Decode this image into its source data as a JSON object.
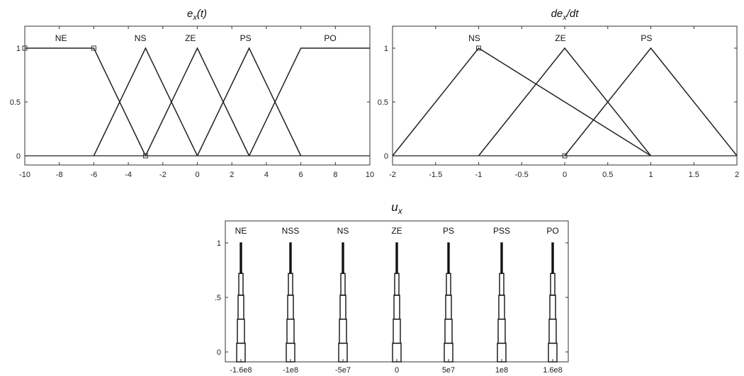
{
  "chart_data": [
    {
      "type": "line",
      "title": "e_x(t)",
      "title_main": "e",
      "title_sub": "x",
      "title_tail": "(t)",
      "xlim": [
        -10,
        10
      ],
      "ylim": [
        0,
        1
      ],
      "xticks": [
        "-10",
        "-8",
        "-6",
        "-4",
        "-2",
        "0",
        "2",
        "4",
        "6",
        "8",
        "10"
      ],
      "yticks": [
        "0",
        "0.5",
        "1"
      ],
      "series": [
        {
          "name": "NE",
          "x": [
            -10,
            -6,
            -3
          ],
          "y": [
            1,
            1,
            0
          ]
        },
        {
          "name": "NS",
          "x": [
            -6,
            -3,
            0
          ],
          "y": [
            0,
            1,
            0
          ]
        },
        {
          "name": "ZE",
          "x": [
            -3,
            0,
            3
          ],
          "y": [
            0,
            1,
            0
          ]
        },
        {
          "name": "PS",
          "x": [
            0,
            3,
            6
          ],
          "y": [
            0,
            1,
            0
          ]
        },
        {
          "name": "PO",
          "x": [
            3,
            6,
            10
          ],
          "y": [
            0,
            1,
            1
          ]
        }
      ],
      "labels": [
        {
          "text": "NE",
          "x": -7.9
        },
        {
          "text": "NS",
          "x": -3.3
        },
        {
          "text": "ZE",
          "x": -0.4
        },
        {
          "text": "PS",
          "x": 2.8
        },
        {
          "text": "PO",
          "x": 7.7
        }
      ]
    },
    {
      "type": "line",
      "title": "de_x/dt",
      "title_main": "de",
      "title_sub": "x",
      "title_tail": "/dt",
      "xlim": [
        -2,
        2
      ],
      "ylim": [
        0,
        1
      ],
      "xticks": [
        "-2",
        "-1.5",
        "-1",
        "-0.5",
        "0",
        "0.5",
        "1",
        "1.5",
        "2"
      ],
      "yticks": [
        "0",
        "0.5",
        "1"
      ],
      "series": [
        {
          "name": "NS",
          "x": [
            -2,
            -1,
            1
          ],
          "y": [
            0,
            1,
            0
          ]
        },
        {
          "name": "ZE",
          "x": [
            -1,
            0,
            1
          ],
          "y": [
            0,
            1,
            0
          ]
        },
        {
          "name": "PS",
          "x": [
            0,
            1,
            2
          ],
          "y": [
            0,
            1,
            0
          ]
        }
      ],
      "labels": [
        {
          "text": "NS",
          "x": -1.05
        },
        {
          "text": "ZE",
          "x": -0.05
        },
        {
          "text": "PS",
          "x": 0.95
        }
      ]
    },
    {
      "type": "line",
      "title": "u_x",
      "title_main": "u",
      "title_sub": "x",
      "title_tail": "",
      "ylim": [
        0,
        1
      ],
      "xticks": [
        "-1.6e8",
        "-1e8",
        "-5e7",
        "0",
        "5e7",
        "1e8",
        "1.6e8"
      ],
      "yticks": [
        "0",
        ".5",
        "1"
      ],
      "series": [
        {
          "name": "NE",
          "center": "-1.6e8",
          "y_peak": 1
        },
        {
          "name": "NSS",
          "center": "-1e8",
          "y_peak": 1
        },
        {
          "name": "NS",
          "center": "-5e7",
          "y_peak": 1
        },
        {
          "name": "ZE",
          "center": "0",
          "y_peak": 1
        },
        {
          "name": "PS",
          "center": "5e7",
          "y_peak": 1
        },
        {
          "name": "PSS",
          "center": "1e8",
          "y_peak": 1
        },
        {
          "name": "PO",
          "center": "1.6e8",
          "y_peak": 1
        }
      ]
    }
  ]
}
